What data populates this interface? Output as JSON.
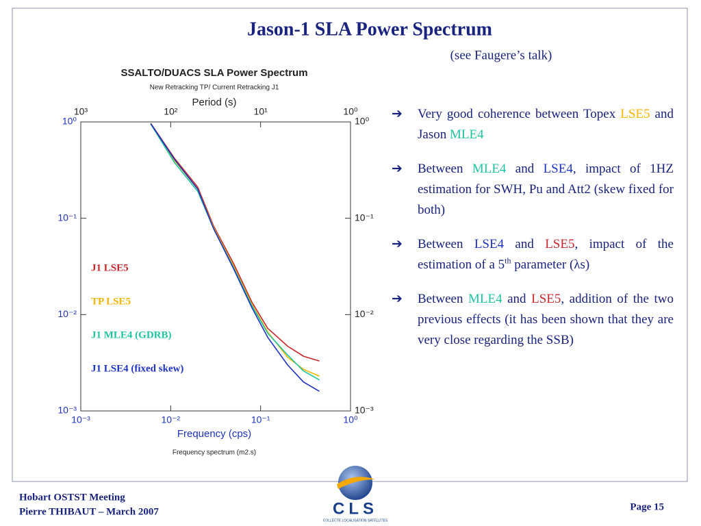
{
  "title": "Jason-1 SLA Power Spectrum",
  "subtitle": "(see Faugere’s talk)",
  "chart_data": {
    "type": "line",
    "title": "SSALTO/DUACS SLA Power Spectrum",
    "subtitle": "New Retracking TP/ Current Retracking J1",
    "x_label": "Frequency (cps)",
    "x2_label": "Period (s)",
    "caption": "Frequency spectrum (m2.s)",
    "log_scale": true,
    "x": [
      0.006,
      0.011,
      0.02,
      0.03,
      0.05,
      0.08,
      0.12,
      0.2,
      0.3,
      0.45
    ],
    "series": [
      {
        "name": "J1 LSE5",
        "color": "#c8262c",
        "values": [
          0.97,
          0.42,
          0.21,
          0.083,
          0.034,
          0.0135,
          0.0072,
          0.0047,
          0.0037,
          0.0033
        ]
      },
      {
        "name": "TP LSE5",
        "color": "#f5b400",
        "values": [
          0.97,
          0.4,
          0.2,
          0.08,
          0.032,
          0.0128,
          0.0066,
          0.0036,
          0.0027,
          0.0023
        ]
      },
      {
        "name": "J1 MLE4 (GDRB)",
        "color": "#1fc4a0",
        "values": [
          0.95,
          0.38,
          0.19,
          0.078,
          0.031,
          0.0124,
          0.0064,
          0.0038,
          0.0026,
          0.0021
        ]
      },
      {
        "name": "J1 LSE4 (fixed skew)",
        "color": "#1f32c0",
        "values": [
          0.96,
          0.41,
          0.2,
          0.078,
          0.03,
          0.0118,
          0.0058,
          0.003,
          0.002,
          0.0016
        ]
      }
    ],
    "xlim": [
      0.001,
      1
    ],
    "ylim": [
      0.001,
      1
    ],
    "x2lim": [
      1000,
      1
    ],
    "xticks": [
      {
        "value": 0.001,
        "label": "10⁻³"
      },
      {
        "value": 0.01,
        "label": "10⁻²"
      },
      {
        "value": 0.1,
        "label": "10⁻¹"
      },
      {
        "value": 1,
        "label": "10⁰"
      }
    ],
    "x2ticks": [
      {
        "value": 1000,
        "label": "10³"
      },
      {
        "value": 100,
        "label": "10²"
      },
      {
        "value": 10,
        "label": "10¹"
      },
      {
        "value": 1,
        "label": "10⁰"
      }
    ],
    "yticks": [
      {
        "value": 1,
        "label": "10⁰"
      },
      {
        "value": 0.1,
        "label": "10⁻¹"
      },
      {
        "value": 0.01,
        "label": "10⁻²"
      },
      {
        "value": 0.001,
        "label": "10⁻³"
      }
    ]
  },
  "bullets": [
    {
      "segments": [
        {
          "text": "Very good coherence between Topex "
        },
        {
          "text": "LSE5",
          "color": "#f5b400"
        },
        {
          "text": " and Jason "
        },
        {
          "text": "MLE4",
          "color": "#1fc4a0"
        }
      ]
    },
    {
      "segments": [
        {
          "text": "Between "
        },
        {
          "text": "MLE4",
          "color": "#1fc4a0"
        },
        {
          "text": " and "
        },
        {
          "text": "LSE4",
          "color": "#1f32c0"
        },
        {
          "text": ", impact of 1HZ estimation for SWH, Pu and Att2 (skew fixed for both)"
        }
      ]
    },
    {
      "segments": [
        {
          "text": "Between "
        },
        {
          "text": "LSE4",
          "color": "#1f32c0"
        },
        {
          "text": " and "
        },
        {
          "text": "LSE5",
          "color": "#c8262c"
        },
        {
          "text": ", impact of the estimation of a 5"
        },
        {
          "text": "th",
          "sup": true
        },
        {
          "text": " parameter (λs)"
        }
      ]
    },
    {
      "segments": [
        {
          "text": "Between "
        },
        {
          "text": "MLE4",
          "color": "#1fc4a0"
        },
        {
          "text": " and "
        },
        {
          "text": "LSE5",
          "color": "#c8262c"
        },
        {
          "text": ", addition of the two previous effects (it has been shown that they are very close regarding the SSB)"
        }
      ]
    }
  ],
  "footer": {
    "meeting": "Hobart OSTST Meeting",
    "author": "Pierre THIBAUT – March 2007",
    "page": "Page 15",
    "logo": "CLS",
    "logo_tagline": "COLLECTE LOCALISATION SATELLITES"
  }
}
